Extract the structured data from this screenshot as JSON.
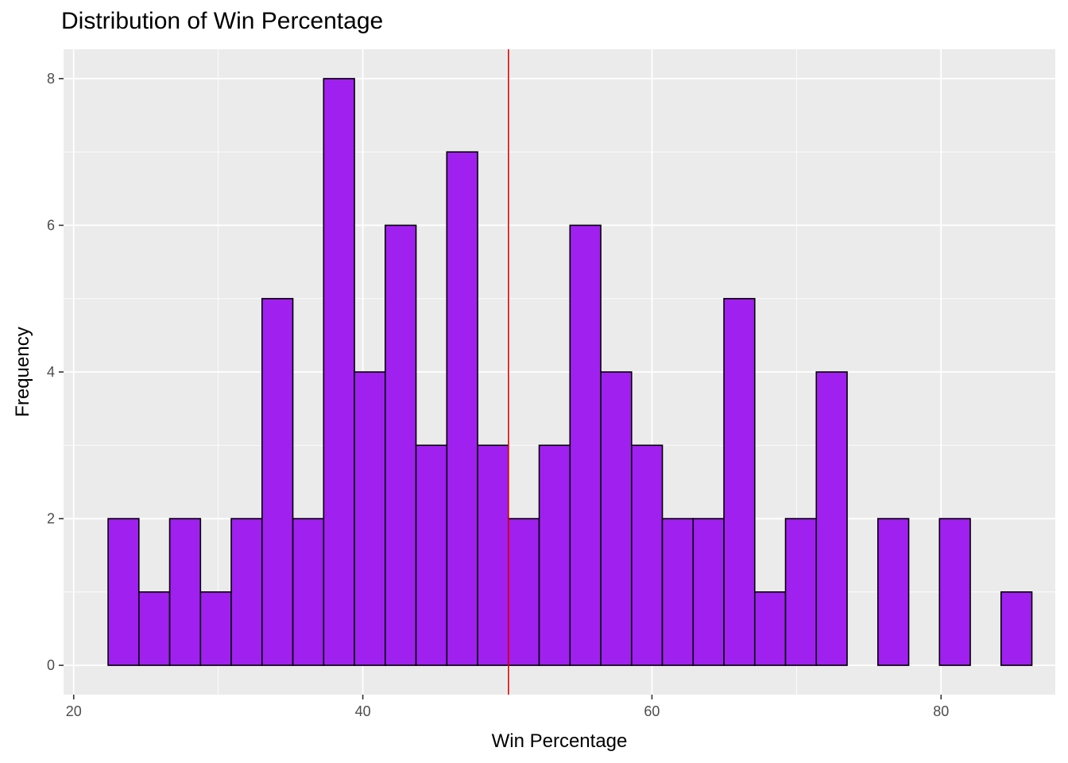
{
  "chart_data": {
    "type": "bar",
    "title": "Distribution of Win Percentage",
    "xlabel": "Win Percentage",
    "ylabel": "Frequency",
    "xlim": [
      19.3,
      87.9
    ],
    "ylim": [
      -0.4,
      8.4
    ],
    "x_ticks": [
      20,
      40,
      60,
      80
    ],
    "y_ticks": [
      0,
      2,
      4,
      6,
      8
    ],
    "bin_width": 2.13,
    "bins": [
      {
        "x0": 22.38,
        "count": 2
      },
      {
        "x0": 24.51,
        "count": 1
      },
      {
        "x0": 26.64,
        "count": 2
      },
      {
        "x0": 28.77,
        "count": 1
      },
      {
        "x0": 30.9,
        "count": 2
      },
      {
        "x0": 33.03,
        "count": 5
      },
      {
        "x0": 35.16,
        "count": 2
      },
      {
        "x0": 37.29,
        "count": 8
      },
      {
        "x0": 39.42,
        "count": 4
      },
      {
        "x0": 41.55,
        "count": 6
      },
      {
        "x0": 43.68,
        "count": 3
      },
      {
        "x0": 45.81,
        "count": 7
      },
      {
        "x0": 47.94,
        "count": 3
      },
      {
        "x0": 50.07,
        "count": 2
      },
      {
        "x0": 52.2,
        "count": 3
      },
      {
        "x0": 54.33,
        "count": 6
      },
      {
        "x0": 56.46,
        "count": 4
      },
      {
        "x0": 58.59,
        "count": 3
      },
      {
        "x0": 60.72,
        "count": 2
      },
      {
        "x0": 62.85,
        "count": 2
      },
      {
        "x0": 64.98,
        "count": 5
      },
      {
        "x0": 67.11,
        "count": 1
      },
      {
        "x0": 69.24,
        "count": 2
      },
      {
        "x0": 71.37,
        "count": 4
      },
      {
        "x0": 73.5,
        "count": 0
      },
      {
        "x0": 75.63,
        "count": 2
      },
      {
        "x0": 77.76,
        "count": 0
      },
      {
        "x0": 79.89,
        "count": 2
      },
      {
        "x0": 82.02,
        "count": 0
      },
      {
        "x0": 84.15,
        "count": 1
      }
    ],
    "vline": {
      "x": 50.07
    },
    "grid": true,
    "legend": "none"
  },
  "colors": {
    "bar_fill": "#a020f0",
    "bar_outline": "#000000",
    "vline": "#e00000",
    "panel_background": "#ebebeb",
    "grid_line": "#ffffff"
  }
}
